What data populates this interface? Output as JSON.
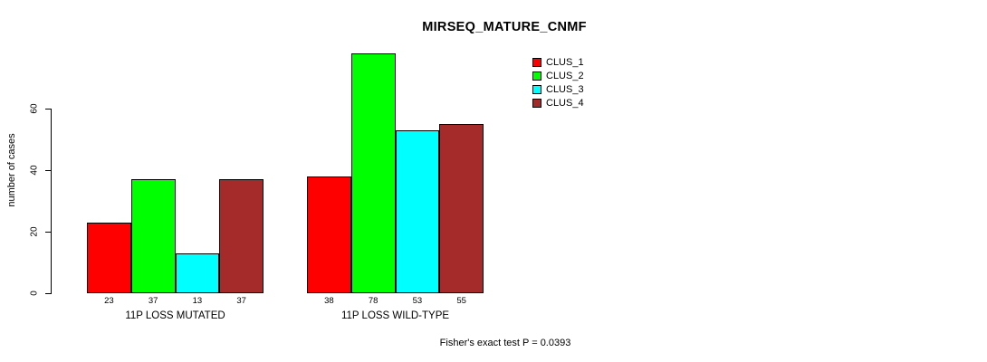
{
  "title": "MIRSEQ_MATURE_CNMF",
  "footnote": "Fisher's exact test P = 0.0393",
  "chart_data": {
    "type": "bar",
    "title": "MIRSEQ_MATURE_CNMF",
    "ylabel": "number of cases",
    "xlabel": "",
    "categories": [
      "11P LOSS MUTATED",
      "11P LOSS WILD-TYPE"
    ],
    "series": [
      {
        "name": "CLUS_1",
        "color": "#ff0000",
        "values": [
          23,
          38
        ]
      },
      {
        "name": "CLUS_2",
        "color": "#00ff00",
        "values": [
          37,
          78
        ]
      },
      {
        "name": "CLUS_3",
        "color": "#00ffff",
        "values": [
          13,
          53
        ]
      },
      {
        "name": "CLUS_4",
        "color": "#a52a2a",
        "values": [
          37,
          55
        ]
      }
    ],
    "bar_value_labels": [
      [
        23,
        37,
        13,
        37
      ],
      [
        38,
        78,
        53,
        55
      ]
    ],
    "yticks": [
      0,
      20,
      40,
      60
    ],
    "ylim": [
      0,
      80
    ],
    "grid": false,
    "legend_position": "top-right",
    "annotation": "Fisher's exact test P = 0.0393",
    "bar_border_color": "#000000"
  }
}
